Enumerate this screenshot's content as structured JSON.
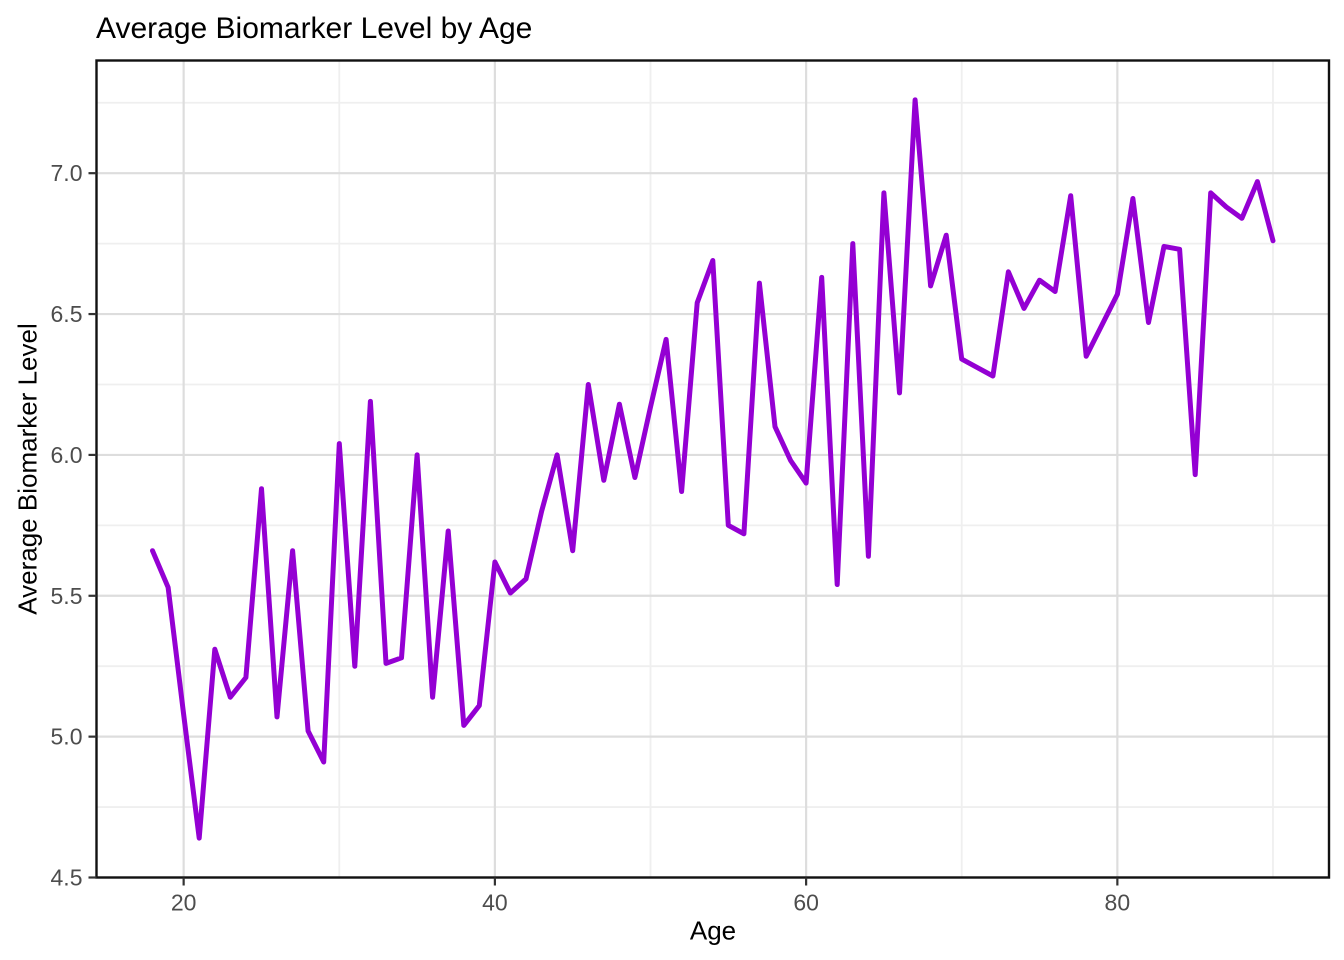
{
  "chart_data": {
    "type": "line",
    "title": "Average Biomarker Level by Age",
    "xlabel": "Age",
    "ylabel": "Average Biomarker Level",
    "series_name": "Average Biomarker Level",
    "x": [
      18,
      19,
      20,
      21,
      22,
      23,
      24,
      25,
      26,
      27,
      28,
      29,
      30,
      31,
      32,
      33,
      34,
      35,
      36,
      37,
      38,
      39,
      40,
      41,
      42,
      43,
      44,
      45,
      46,
      47,
      48,
      49,
      50,
      51,
      52,
      53,
      54,
      55,
      56,
      57,
      58,
      59,
      60,
      61,
      62,
      63,
      64,
      65,
      66,
      67,
      68,
      69,
      70,
      71,
      72,
      73,
      74,
      75,
      76,
      77,
      78,
      79,
      80,
      81,
      82,
      83,
      84,
      85,
      86,
      87,
      88,
      89,
      90
    ],
    "y": [
      5.66,
      5.53,
      5.08,
      4.64,
      5.31,
      5.14,
      5.21,
      5.88,
      5.07,
      5.66,
      5.02,
      4.91,
      6.04,
      5.25,
      6.19,
      5.26,
      5.28,
      6.0,
      5.14,
      5.73,
      5.04,
      5.11,
      5.62,
      5.51,
      5.56,
      5.8,
      6.0,
      5.66,
      6.25,
      5.91,
      6.18,
      5.92,
      6.17,
      6.41,
      5.87,
      6.54,
      6.69,
      5.75,
      5.72,
      6.61,
      6.1,
      5.98,
      5.9,
      6.63,
      5.54,
      6.75,
      5.64,
      6.93,
      6.22,
      7.26,
      6.6,
      6.78,
      6.34,
      6.31,
      6.28,
      6.65,
      6.52,
      6.62,
      6.58,
      6.92,
      6.35,
      6.46,
      6.57,
      6.91,
      6.47,
      6.74,
      6.73,
      5.93,
      6.93,
      6.88,
      6.84,
      6.97,
      6.76
    ],
    "xlim": [
      14.4,
      93.6
    ],
    "ylim": [
      4.5,
      7.4
    ],
    "x_ticks": [
      20,
      40,
      60,
      80
    ],
    "x_tick_labels": [
      "20",
      "40",
      "60",
      "80"
    ],
    "x_minor_ticks": [
      30,
      50,
      70,
      90
    ],
    "y_ticks": [
      4.5,
      5.0,
      5.5,
      6.0,
      6.5,
      7.0
    ],
    "y_tick_labels": [
      "4.5",
      "5.0",
      "5.5",
      "6.0",
      "6.5",
      "7.0"
    ],
    "y_minor_ticks": [
      4.75,
      5.25,
      5.75,
      6.25,
      6.75,
      7.25
    ],
    "grid": true,
    "legend": "none",
    "line_color": "#9400D3"
  },
  "colors": {
    "background": "#ffffff",
    "panel_background": "#ffffff",
    "panel_border": "#111111",
    "grid_major": "#dddddd",
    "grid_minor": "#efefef",
    "tick_mark": "#333333",
    "tick_label": "#4d4d4d",
    "title_text": "#000000",
    "line": "#9400D3"
  }
}
